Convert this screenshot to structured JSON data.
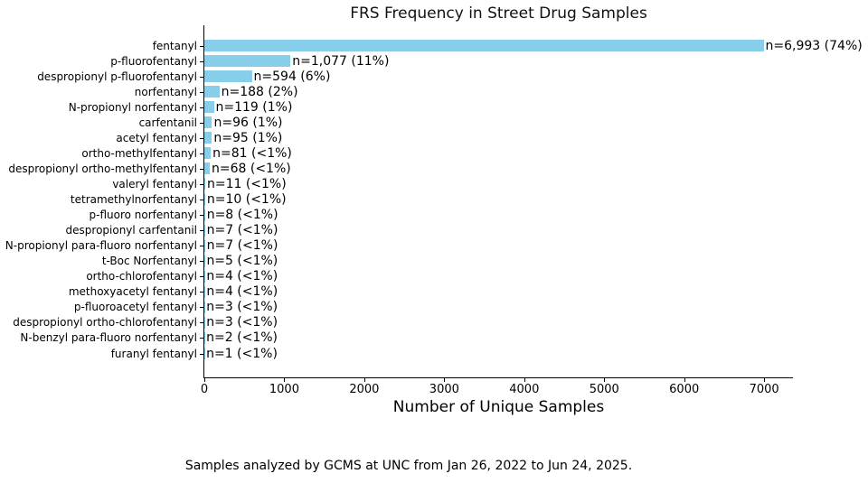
{
  "caption": "Samples analyzed by GCMS at UNC from Jan 26, 2022 to Jun 24, 2025.",
  "colors": {
    "bar": "#87ceeb",
    "text": "#000000",
    "axis": "#000000"
  },
  "chart_data": {
    "type": "bar",
    "orientation": "horizontal",
    "title": "FRS Frequency in Street Drug Samples",
    "xlabel": "Number of Unique Samples",
    "ylabel": "",
    "xlim": [
      0,
      7360
    ],
    "xticks": [
      0,
      1000,
      2000,
      3000,
      4000,
      5000,
      6000,
      7000
    ],
    "grid": false,
    "legend": null,
    "categories": [
      "fentanyl",
      "p-fluorofentanyl",
      "despropionyl p-fluorofentanyl",
      "norfentanyl",
      "N-propionyl norfentanyl",
      "carfentanil",
      "acetyl fentanyl",
      "ortho-methylfentanyl",
      "despropionyl ortho-methylfentanyl",
      "valeryl fentanyl",
      "tetramethylnorfentanyl",
      "p-fluoro norfentanyl",
      "despropionyl carfentanil",
      "N-propionyl para-fluoro norfentanyl",
      "t-Boc Norfentanyl",
      "ortho-chlorofentanyl",
      "methoxyacetyl fentanyl",
      "p-fluoroacetyl fentanyl",
      "despropionyl ortho-chlorofentanyl",
      "N-benzyl para-fluoro norfentanyl",
      "furanyl fentanyl"
    ],
    "values": [
      6993,
      1077,
      594,
      188,
      119,
      96,
      95,
      81,
      68,
      11,
      10,
      8,
      7,
      7,
      5,
      4,
      4,
      3,
      3,
      2,
      1
    ],
    "bar_labels": [
      "n=6,993 (74%)",
      "n=1,077 (11%)",
      "n=594 (6%)",
      "n=188 (2%)",
      "n=119 (1%)",
      "n=96 (1%)",
      "n=95 (1%)",
      "n=81 (<1%)",
      "n=68 (<1%)",
      "n=11 (<1%)",
      "n=10 (<1%)",
      "n=8 (<1%)",
      "n=7 (<1%)",
      "n=7 (<1%)",
      "n=5 (<1%)",
      "n=4 (<1%)",
      "n=4 (<1%)",
      "n=3 (<1%)",
      "n=3 (<1%)",
      "n=2 (<1%)",
      "n=1 (<1%)"
    ]
  }
}
